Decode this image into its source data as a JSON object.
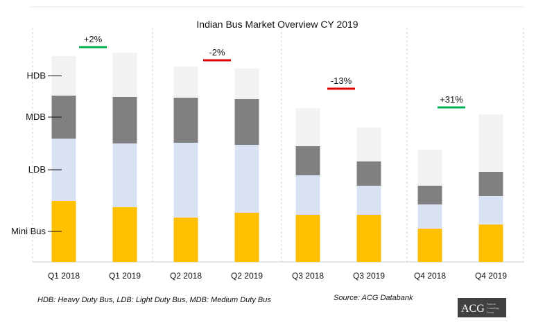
{
  "chart_data": {
    "type": "bar",
    "stacked": true,
    "title": "Indian Bus Market Overview CY 2019",
    "categories": [
      "Q1 2018",
      "Q1 2019",
      "Q2 2018",
      "Q2 2019",
      "Q3 2018",
      "Q3 2019",
      "Q4 2018",
      "Q4 2019"
    ],
    "series": [
      {
        "name": "Mini Bus",
        "color": "#ffc000",
        "values": [
          88,
          79,
          64,
          71,
          68,
          68,
          48,
          54
        ]
      },
      {
        "name": "LDB",
        "color": "#dae3f3",
        "values": [
          90,
          92,
          108,
          98,
          57,
          42,
          35,
          41
        ]
      },
      {
        "name": "MDB",
        "color": "#808080",
        "values": [
          62,
          67,
          65,
          66,
          42,
          35,
          27,
          35
        ]
      },
      {
        "name": "HDB",
        "color": "#f2f2f2",
        "values": [
          57,
          64,
          45,
          44,
          55,
          49,
          52,
          83
        ]
      }
    ],
    "ylim": [
      0,
      310
    ],
    "grid": false,
    "legend": "left",
    "changes": [
      {
        "label": "+2%",
        "color": "#00b050"
      },
      {
        "label": "-2%",
        "color": "#e00000"
      },
      {
        "label": "-13%",
        "color": "#e00000"
      },
      {
        "label": "+31%",
        "color": "#00b050"
      }
    ]
  },
  "footnote_left": "HDB: Heavy Duty Bus, LDB: Light Duty Bus, MDB: Medium Duty Bus",
  "footnote_right": "Source: ACG Databank",
  "logo": {
    "text": "ACG",
    "subtitle": [
      "Autocar",
      "Consulting",
      "Group"
    ],
    "color": "#404040"
  }
}
